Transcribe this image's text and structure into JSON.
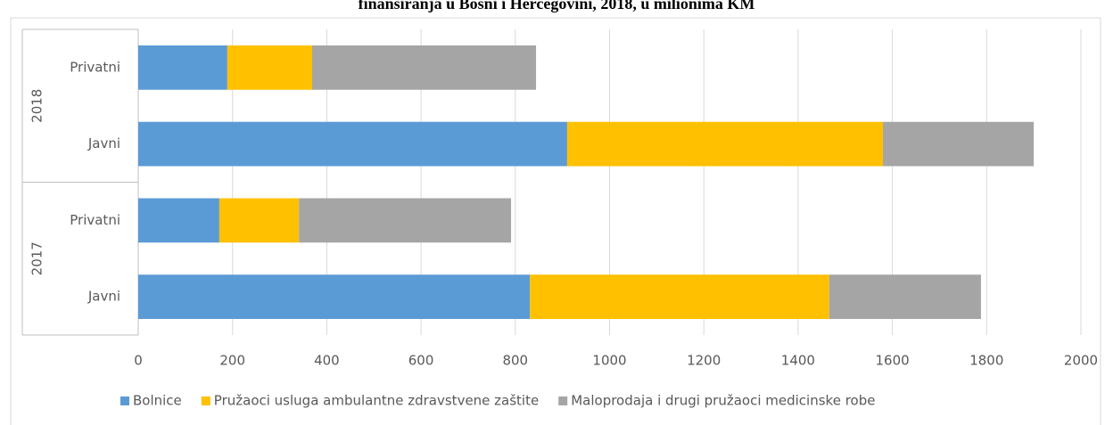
{
  "chart_data": {
    "type": "stacked_barh",
    "title": "finansiranja u Bosni i Hercegovini, 2018, u milionima KM",
    "groups": [
      {
        "label": "2018",
        "categories": [
          "Privatni",
          "Javni"
        ]
      },
      {
        "label": "2017",
        "categories": [
          "Privatni",
          "Javni"
        ]
      }
    ],
    "series": [
      {
        "name": "Bolnice",
        "color": "#5b9bd5",
        "values": [
          189,
          910,
          172,
          831
        ]
      },
      {
        "name": "Pružaoci usluga ambulantne zdravstvene zaštite",
        "color": "#ffc000",
        "values": [
          180,
          670,
          169,
          635
        ]
      },
      {
        "name": "Maloprodaja i drugi pružaoci medicinske robe",
        "color": "#a5a5a5",
        "values": [
          475,
          320,
          450,
          322
        ]
      }
    ],
    "xlim": [
      0,
      2000
    ],
    "xticks": [
      0,
      200,
      400,
      600,
      800,
      1000,
      1200,
      1400,
      1600,
      1800,
      2000
    ],
    "grid": true,
    "legend": "bottom"
  }
}
